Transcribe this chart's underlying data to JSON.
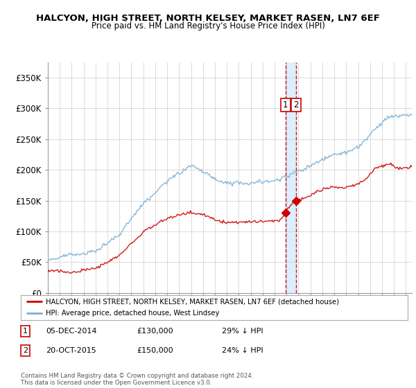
{
  "title": "HALCYON, HIGH STREET, NORTH KELSEY, MARKET RASEN, LN7 6EF",
  "subtitle": "Price paid vs. HM Land Registry's House Price Index (HPI)",
  "ylim": [
    0,
    375000
  ],
  "yticks": [
    0,
    50000,
    100000,
    150000,
    200000,
    250000,
    300000,
    350000
  ],
  "ytick_labels": [
    "£0",
    "£50K",
    "£100K",
    "£150K",
    "£200K",
    "£250K",
    "£300K",
    "£350K"
  ],
  "transaction1_date": "05-DEC-2014",
  "transaction1_price": 130000,
  "transaction1_note": "29% ↓ HPI",
  "transaction2_date": "20-OCT-2015",
  "transaction2_price": 150000,
  "transaction2_note": "24% ↓ HPI",
  "t1_year": 2014.92,
  "t2_year": 2015.79,
  "legend_line1": "HALCYON, HIGH STREET, NORTH KELSEY, MARKET RASEN, LN7 6EF (detached house)",
  "legend_line2": "HPI: Average price, detached house, West Lindsey",
  "footer": "Contains HM Land Registry data © Crown copyright and database right 2024.\nThis data is licensed under the Open Government Licence v3.0.",
  "red_color": "#cc0000",
  "blue_color": "#7bafd4",
  "band_color": "#ddeeff",
  "background_color": "#ffffff",
  "grid_color": "#cccccc",
  "xmin": 1995,
  "xmax": 2025.5
}
